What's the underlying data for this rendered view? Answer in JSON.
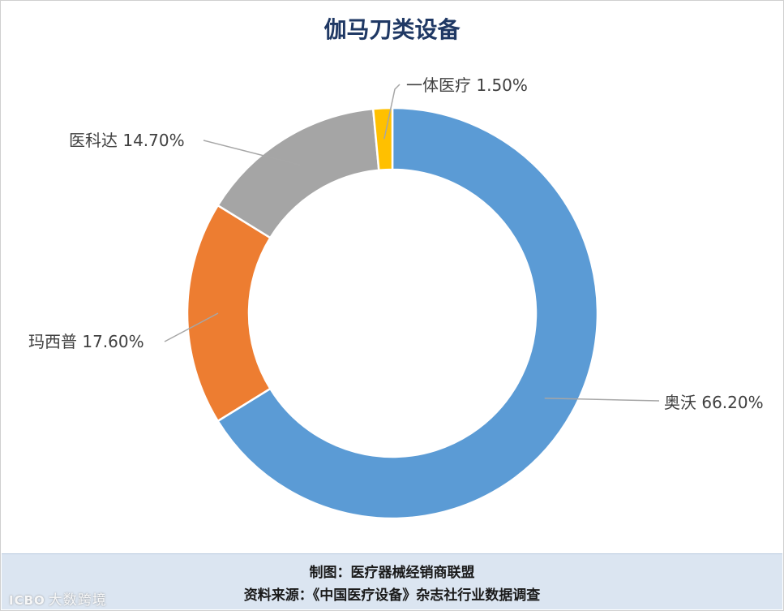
{
  "chart_data": {
    "type": "pie",
    "donut": true,
    "title": "伽马刀类设备",
    "slices": [
      {
        "name": "奥沃",
        "value": 66.2,
        "label": "奥沃 66.20%",
        "color": "#5b9bd5"
      },
      {
        "name": "玛西普",
        "value": 17.6,
        "label": "玛西普 17.60%",
        "color": "#ed7d31"
      },
      {
        "name": "医科达",
        "value": 14.7,
        "label": "医科达 14.70%",
        "color": "#a5a5a5"
      },
      {
        "name": "一体医疗",
        "value": 1.5,
        "label": "一体医疗 1.50%",
        "color": "#ffc000"
      }
    ],
    "start_angle_deg": 0,
    "direction": "clockwise"
  },
  "footer": {
    "line1": "制图：医疗器械经销商联盟",
    "line2": "资料来源：《中国医疗设备》杂志社行业数据调查"
  },
  "watermark": {
    "logo": "ICBO",
    "text": "大数跨境"
  }
}
